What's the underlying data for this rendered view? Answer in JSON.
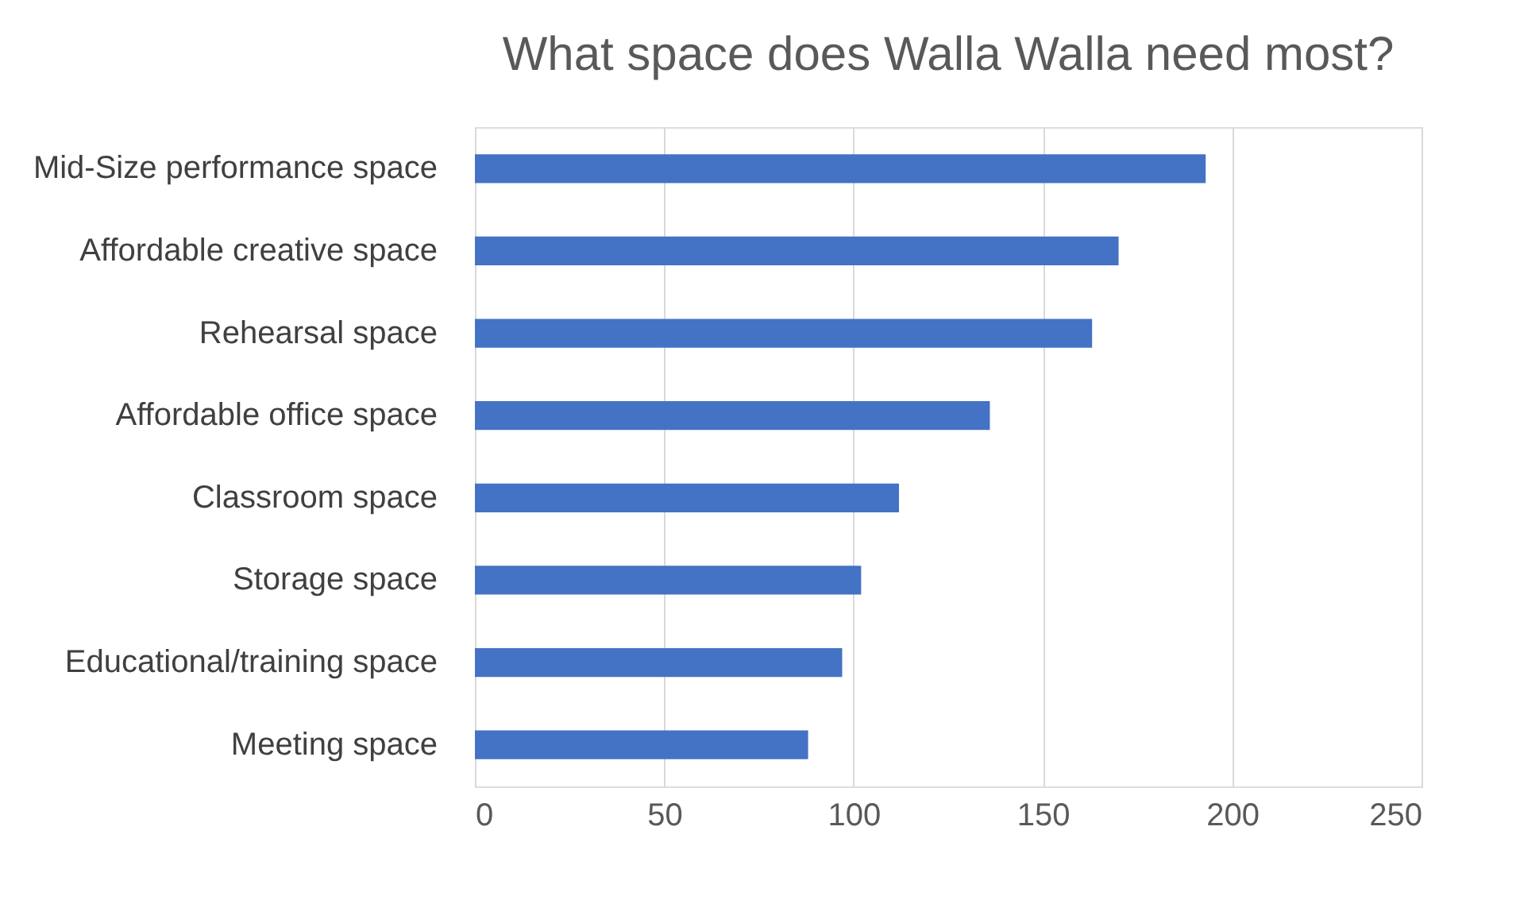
{
  "chart_data": {
    "type": "bar",
    "orientation": "horizontal",
    "title": "What space does Walla Walla need most?",
    "categories": [
      "Mid-Size performance space",
      "Affordable creative space",
      "Rehearsal space",
      "Affordable office space",
      "Classroom space",
      "Storage space",
      "Educational/training space",
      "Meeting space"
    ],
    "values": [
      193,
      170,
      163,
      136,
      112,
      102,
      97,
      88
    ],
    "color": "#4472c4",
    "xlim": [
      0,
      250
    ],
    "xticks": [
      0,
      50,
      100,
      150,
      200,
      250
    ],
    "grid": "x"
  }
}
